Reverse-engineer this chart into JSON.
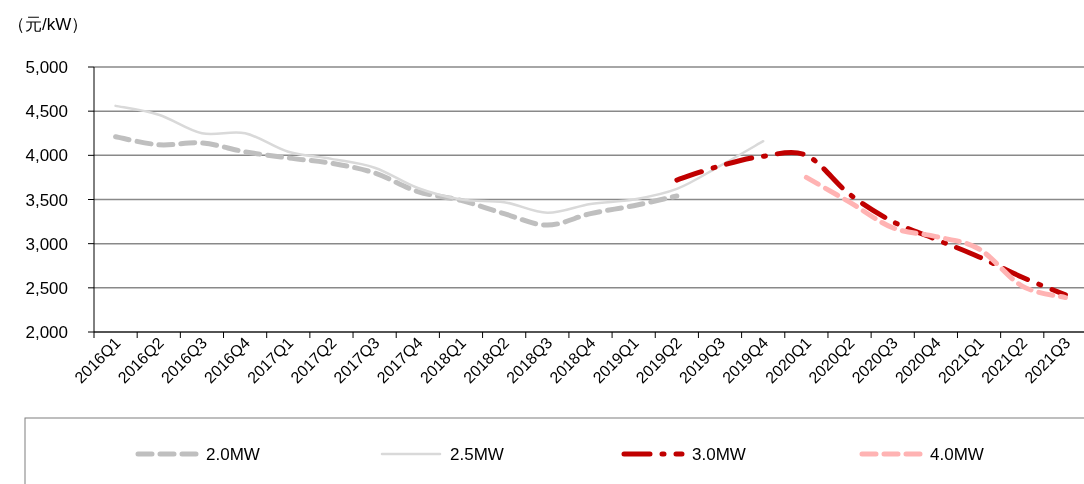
{
  "chart_data": {
    "type": "line",
    "ylabel": "（元/kW）",
    "categories": [
      "2016Q1",
      "2016Q2",
      "2016Q3",
      "2016Q4",
      "2017Q1",
      "2017Q2",
      "2017Q3",
      "2017Q4",
      "2018Q1",
      "2018Q2",
      "2018Q3",
      "2018Q4",
      "2019Q1",
      "2019Q2",
      "2019Q3",
      "2019Q4",
      "2020Q1",
      "2020Q2",
      "2020Q3",
      "2020Q4",
      "2021Q1",
      "2021Q2",
      "2021Q3"
    ],
    "series": [
      {
        "name": "2.0MW",
        "color": "#bfbfbf",
        "line_style": "dashed",
        "values": [
          4210,
          4120,
          4140,
          4040,
          3970,
          3910,
          3800,
          3590,
          3490,
          3340,
          3210,
          3340,
          3430,
          3540,
          null,
          null,
          null,
          null,
          null,
          null,
          null,
          null,
          null
        ]
      },
      {
        "name": "2.5MW",
        "color": "#d9d9d9",
        "line_style": "solid",
        "values": [
          4560,
          4460,
          4250,
          4250,
          4040,
          3960,
          3860,
          3630,
          3500,
          3470,
          3350,
          3450,
          3500,
          3620,
          3880,
          4160,
          null,
          null,
          null,
          null,
          null,
          null,
          null
        ]
      },
      {
        "name": "3.0MW",
        "color": "#c00000",
        "line_style": "dashdot",
        "values": [
          null,
          null,
          null,
          null,
          null,
          null,
          null,
          null,
          null,
          null,
          null,
          null,
          null,
          3720,
          3880,
          3990,
          4000,
          3560,
          3250,
          3050,
          2850,
          2620,
          2420
        ]
      },
      {
        "name": "4.0MW",
        "color": "#ffb3b3",
        "line_style": "dashed",
        "values": [
          null,
          null,
          null,
          null,
          null,
          null,
          null,
          null,
          null,
          null,
          null,
          null,
          null,
          null,
          null,
          null,
          3750,
          3470,
          3180,
          3080,
          2940,
          2520,
          2390
        ]
      }
    ],
    "ylim": [
      2000,
      5000
    ],
    "yticks": [
      {
        "value": 2000,
        "label": "2,000"
      },
      {
        "value": 2500,
        "label": "2,500"
      },
      {
        "value": 3000,
        "label": "3,000"
      },
      {
        "value": 3500,
        "label": "3,500"
      },
      {
        "value": 4000,
        "label": "4,000"
      },
      {
        "value": 4500,
        "label": "4,500"
      },
      {
        "value": 5000,
        "label": "5,000"
      }
    ],
    "grid": "y",
    "legend": "bottom",
    "marker": "none"
  }
}
